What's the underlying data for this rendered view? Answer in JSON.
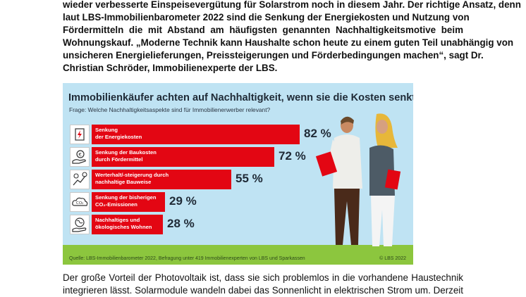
{
  "paragraph1": {
    "lines": [
      "wieder verbesserte Einspeisevergütung für Solarstrom noch in diesem Jahr. Der richtige Ansatz, denn",
      "laut LBS-Immobilienbarometer 2022 sind die Senkung der Energiekosten und Nutzung von",
      "Fördermitteln die mit Abstand am häufigsten genannten Nachhaltigkeitsmotive beim",
      "Wohnungskauf. „Moderne Technik kann Haushalte schon heute zu einem guten Teil unabhängig von",
      "unsicheren Energielieferungen, Preissteigerungen und Förderbedingungen machen“, sagt Dr.",
      "Christian Schröder, Immobilienexperte der LBS."
    ]
  },
  "infographic": {
    "title": "Immobilienkäufer achten auf Nachhaltigkeit, wenn sie die Kosten senkt",
    "question": "Frage: Welche Nachhaltigkeitsaspekte sind für Immobilienerwerber relevant?",
    "source": "Quelle: LBS-Immobilienbarometer 2022, Befragung unter 419 Immobilienexperten von LBS und Sparkassen",
    "copyright": "© LBS 2022",
    "bar_color": "#e30613",
    "background_color": "#bfe3f3",
    "grass_color": "#8cc63e"
  },
  "chart_data": {
    "type": "bar",
    "orientation": "horizontal",
    "categories": [
      [
        "Senkung",
        "der Energiekosten"
      ],
      [
        "Senkung der Baukosten",
        "durch Fördermittel"
      ],
      [
        "Werterhalt/-steigerung durch",
        "nachhaltige Bauweise"
      ],
      [
        "Senkung der bisherigen",
        "CO₂-Emissionen"
      ],
      [
        "Nachhaltiges und",
        "ökologisches Wohnen"
      ]
    ],
    "values": [
      82,
      72,
      55,
      29,
      28
    ],
    "value_labels": [
      "82 %",
      "72 %",
      "55 %",
      "29 %",
      "28 %"
    ],
    "icons": [
      "energy-bolt-icon",
      "money-hand-icon",
      "growth-coin-icon",
      "co2-cloud-icon",
      "eco-globe-hand-icon"
    ],
    "xlim": [
      0,
      100
    ]
  },
  "paragraph2": {
    "lines": [
      "Der große Vorteil der Photovoltaik ist, dass sie sich problemlos in die vorhandene Haustechnik",
      "integrieren lässt. Solarmodule wandeln dabei das Sonnenlicht in elektrischen Strom um. Derzeit"
    ]
  }
}
